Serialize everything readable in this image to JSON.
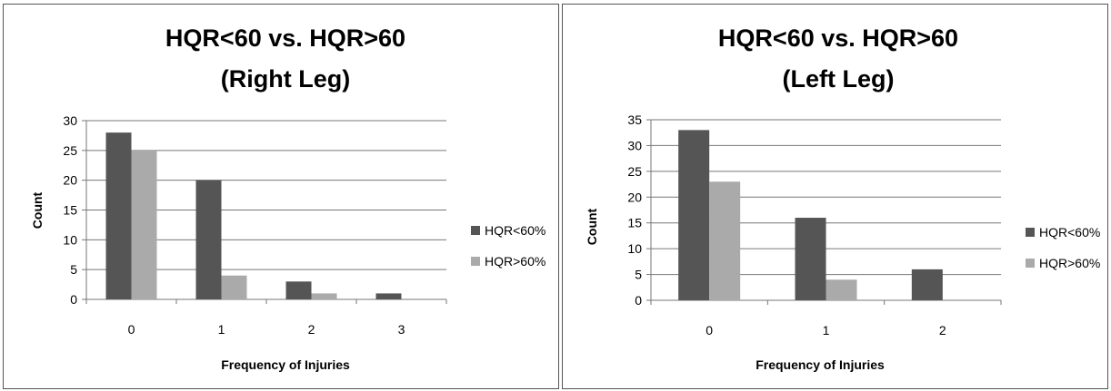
{
  "chart_data": [
    {
      "type": "bar",
      "title": "HQR<60 vs. HQR>60",
      "subtitle": "(Right Leg)",
      "xlabel": "Frequency of Injuries",
      "ylabel": "Count",
      "categories": [
        "0",
        "1",
        "2",
        "3"
      ],
      "ylim": [
        0,
        30
      ],
      "yticks": [
        0,
        5,
        10,
        15,
        20,
        25,
        30
      ],
      "grid": true,
      "legend_position": "right",
      "series": [
        {
          "name": "HQR<60%",
          "color": "#555555",
          "values": [
            28,
            20,
            3,
            1
          ]
        },
        {
          "name": "HQR>60%",
          "color": "#aaaaaa",
          "values": [
            25,
            4,
            1,
            0
          ]
        }
      ]
    },
    {
      "type": "bar",
      "title": "HQR<60 vs. HQR>60",
      "subtitle": "(Left Leg)",
      "xlabel": "Frequency of Injuries",
      "ylabel": "Count",
      "categories": [
        "0",
        "1",
        "2"
      ],
      "ylim": [
        0,
        35
      ],
      "yticks": [
        0,
        5,
        10,
        15,
        20,
        25,
        30,
        35
      ],
      "grid": true,
      "legend_position": "right",
      "series": [
        {
          "name": "HQR<60%",
          "color": "#555555",
          "values": [
            33,
            16,
            6
          ]
        },
        {
          "name": "HQR>60%",
          "color": "#aaaaaa",
          "values": [
            23,
            4,
            0
          ]
        }
      ]
    }
  ]
}
